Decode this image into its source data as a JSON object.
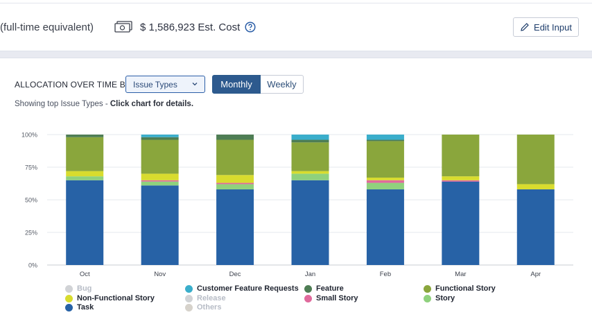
{
  "summary": {
    "fte_text": "(full-time equivalent)",
    "cost_text": "$ 1,586,923 Est. Cost",
    "edit_button": "Edit Input"
  },
  "controls": {
    "label": "ALLOCATION OVER TIME BY",
    "select_value": "Issue Types",
    "toggle_monthly": "Monthly",
    "toggle_weekly": "Weekly",
    "hint_prefix": "Showing top Issue Types - ",
    "hint_bold": "Click chart for details."
  },
  "chart_data": {
    "type": "bar",
    "stacked": true,
    "categories": [
      "Oct",
      "Nov",
      "Dec",
      "Jan",
      "Feb",
      "Mar",
      "Apr"
    ],
    "y_ticks": [
      "0%",
      "25%",
      "50%",
      "75%",
      "100%"
    ],
    "ylim": [
      0,
      100
    ],
    "grid": true,
    "legend_position": "bottom",
    "series": [
      {
        "name": "Task",
        "color": "#2762a6",
        "values": [
          65,
          61,
          58,
          65,
          58,
          64,
          58
        ]
      },
      {
        "name": "Story",
        "color": "#8fd17d",
        "values": [
          3,
          3,
          4,
          5,
          5,
          0,
          0
        ]
      },
      {
        "name": "Small Story",
        "color": "#e06a9c",
        "values": [
          0,
          1,
          1,
          0,
          2,
          1,
          0
        ]
      },
      {
        "name": "Non-Functional Story",
        "color": "#d8dc2e",
        "values": [
          4,
          5,
          6,
          2,
          2,
          3,
          4
        ]
      },
      {
        "name": "Functional Story",
        "color": "#8aa63c",
        "values": [
          26,
          26,
          27,
          22,
          28,
          32,
          38
        ]
      },
      {
        "name": "Feature",
        "color": "#4e7d54",
        "values": [
          2,
          2,
          4,
          2,
          1,
          0,
          0
        ]
      },
      {
        "name": "Customer Feature Requests",
        "color": "#3aaecb",
        "values": [
          0,
          2,
          0,
          4,
          4,
          0,
          0
        ]
      }
    ],
    "legend": [
      {
        "name": "Bug",
        "color": "#d1d3d6",
        "muted": true
      },
      {
        "name": "Customer Feature Requests",
        "color": "#3aaecb",
        "muted": false
      },
      {
        "name": "Feature",
        "color": "#4e7d54",
        "muted": false
      },
      {
        "name": "Functional Story",
        "color": "#8aa63c",
        "muted": false
      },
      {
        "name": "Non-Functional Story",
        "color": "#d8dc2e",
        "muted": false
      },
      {
        "name": "Release",
        "color": "#d1d3d6",
        "muted": true
      },
      {
        "name": "Small Story",
        "color": "#e06a9c",
        "muted": false
      },
      {
        "name": "Story",
        "color": "#8fd17d",
        "muted": false
      },
      {
        "name": "Task",
        "color": "#2762a6",
        "muted": false
      },
      {
        "name": "Others",
        "color": "#d6d2cb",
        "muted": true
      }
    ]
  }
}
